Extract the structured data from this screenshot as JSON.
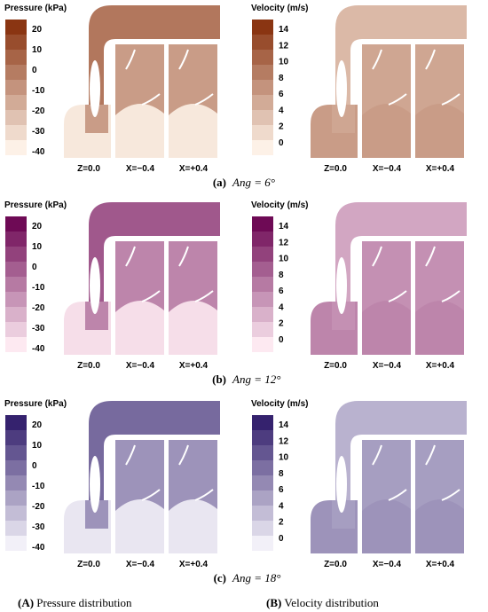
{
  "figures": [
    {
      "label": "(a)",
      "caption": "Ang = 6°",
      "panels": [
        {
          "colorbar_title": "Pressure (kPa)",
          "ticks": [
            "20",
            "10",
            "0",
            "-10",
            "-20",
            "-30",
            "-40"
          ],
          "sections": [
            "Z=0.0",
            "X=−0.4",
            "X=+0.4"
          ]
        },
        {
          "colorbar_title": "Velocity  (m/s)",
          "ticks": [
            "14",
            "12",
            "10",
            "8",
            "6",
            "4",
            "2",
            "0"
          ],
          "sections": [
            "Z=0.0",
            "X=−0.4",
            "X=+0.4"
          ]
        }
      ]
    },
    {
      "label": "(b)",
      "caption": "Ang = 12°",
      "panels": [
        {
          "colorbar_title": "Pressure (kPa)",
          "ticks": [
            "20",
            "10",
            "0",
            "-10",
            "-20",
            "-30",
            "-40"
          ],
          "sections": [
            "Z=0.0",
            "X=−0.4",
            "X=+0.4"
          ]
        },
        {
          "colorbar_title": "Velocity  (m/s)",
          "ticks": [
            "14",
            "12",
            "10",
            "8",
            "6",
            "4",
            "2",
            "0"
          ],
          "sections": [
            "Z=0.0",
            "X=−0.4",
            "X=+0.4"
          ]
        }
      ]
    },
    {
      "label": "(c)",
      "caption": "Ang = 18°",
      "panels": [
        {
          "colorbar_title": "Pressure (kPa)",
          "ticks": [
            "20",
            "10",
            "0",
            "-10",
            "-20",
            "-30",
            "-40"
          ],
          "sections": [
            "Z=0.0",
            "X=−0.4",
            "X=+0.4"
          ]
        },
        {
          "colorbar_title": "Velocity  (m/s)",
          "ticks": [
            "14",
            "12",
            "10",
            "8",
            "6",
            "4",
            "2",
            "0"
          ],
          "sections": [
            "Z=0.0",
            "X=−0.4",
            "X=+0.4"
          ]
        }
      ]
    }
  ],
  "columns": [
    {
      "label": "(A)",
      "text": "Pressure distribution"
    },
    {
      "label": "(B)",
      "text": "Velocity distribution"
    }
  ]
}
